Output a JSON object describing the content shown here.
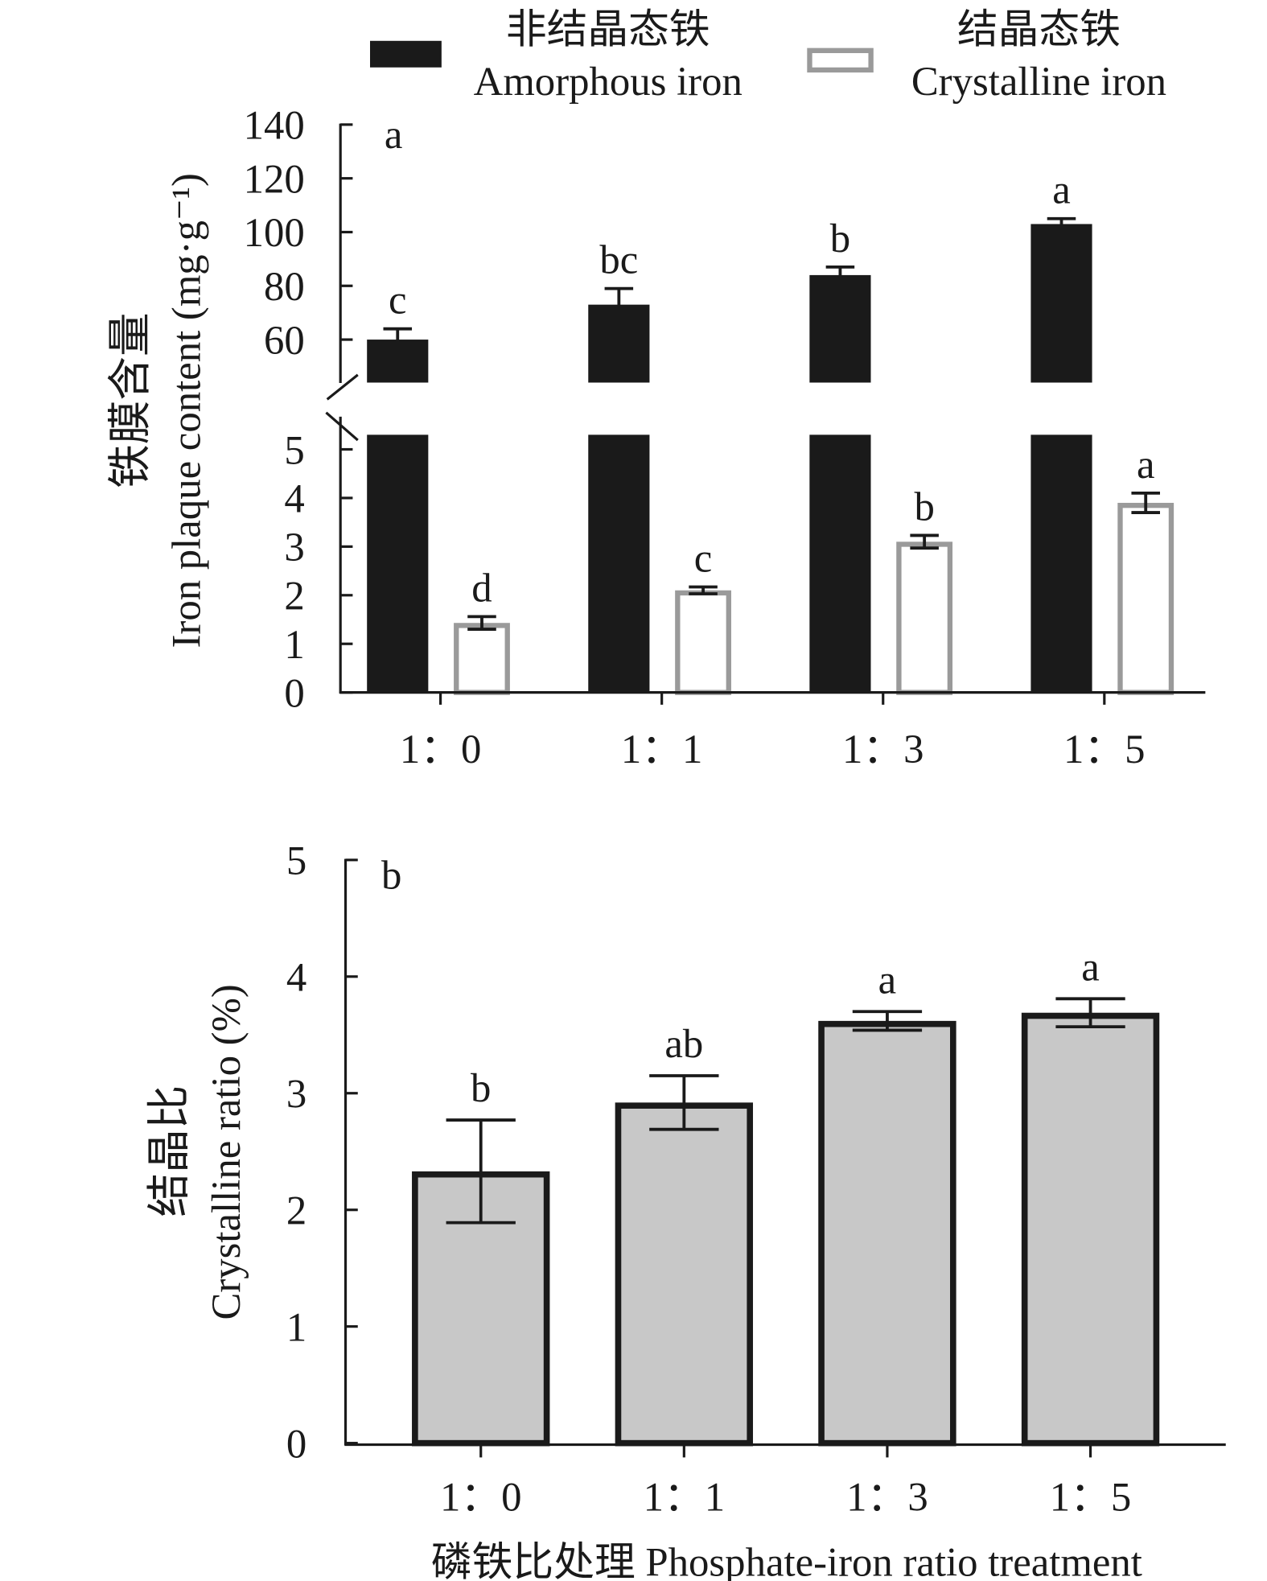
{
  "chart_data": [
    {
      "type": "bar",
      "panel_label": "a",
      "ylabel_zh": "铁膜含量",
      "ylabel": "Iron plaque content (mg·g⁻¹)",
      "categories": [
        "1：0",
        "1：1",
        "1：3",
        "1：5"
      ],
      "y_break": {
        "lower": [
          0,
          5.3
        ],
        "upper": [
          44,
          140
        ]
      },
      "yticks_lower": [
        0,
        1,
        2,
        3,
        4,
        5
      ],
      "yticks_upper": [
        60,
        80,
        100,
        120,
        140
      ],
      "grid": false,
      "legend_position": "top",
      "series": [
        {
          "name_zh": "非结晶态铁",
          "name": "Amorphous iron",
          "color": "#1a1a1a",
          "fill_color": "#1a1a1a",
          "values": [
            60,
            73,
            84,
            103
          ],
          "errors": [
            4,
            6,
            3,
            2
          ],
          "letters": [
            "c",
            "bc",
            "b",
            "a"
          ]
        },
        {
          "name_zh": "结晶态铁",
          "name": "Crystalline iron",
          "color": "#9a9a9a",
          "fill_color": "#ffffff",
          "values": [
            1.43,
            2.1,
            3.1,
            3.9
          ],
          "errors": [
            0.13,
            0.07,
            0.13,
            0.2
          ],
          "letters": [
            "d",
            "c",
            "b",
            "a"
          ]
        }
      ]
    },
    {
      "type": "bar",
      "panel_label": "b",
      "xlabel": "磷铁比处理 Phosphate-iron ratio treatment",
      "ylabel_zh": "结晶比",
      "ylabel": "Crystalline ratio (%)",
      "categories": [
        "1：0",
        "1：1",
        "1：3",
        "1：5"
      ],
      "ylim": [
        0,
        5
      ],
      "yticks": [
        0,
        1,
        2,
        3,
        4,
        5
      ],
      "grid": false,
      "series": [
        {
          "color": "#1a1a1a",
          "fill_color": "#c8c8c8",
          "values": [
            2.33,
            2.92,
            3.62,
            3.69
          ],
          "errors": [
            0.44,
            0.23,
            0.08,
            0.12
          ],
          "letters": [
            "b",
            "ab",
            "a",
            "a"
          ]
        }
      ]
    }
  ]
}
